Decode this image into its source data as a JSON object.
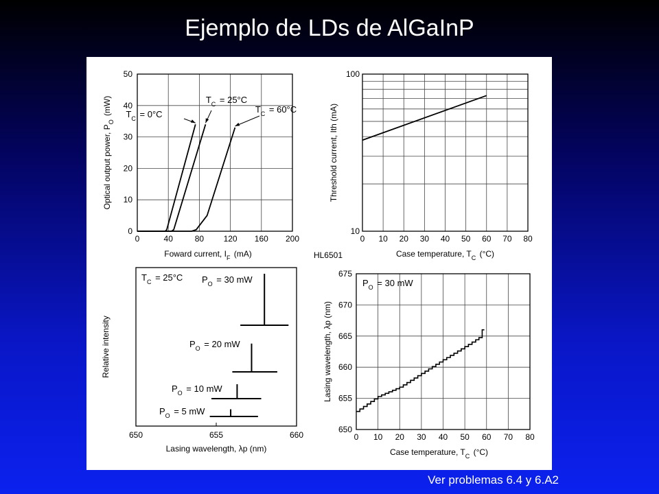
{
  "slide": {
    "title": "Ejemplo de LDs de AlGaInP",
    "footnote": "Ver problemas 6.4 y 6.A2"
  },
  "device_label": "HL6501",
  "colors": {
    "panel_bg": "#ffffff",
    "ink": "#000000",
    "title": "#ffffff"
  },
  "chart_data": [
    {
      "type": "line",
      "panel": "top-left",
      "xlabel": "Foward current,  I",
      "xlabel_sub": "F",
      "xlabel_unit": "(mA)",
      "ylabel": "Optical output power,  P",
      "ylabel_sub": "O",
      "ylabel_unit": "(mW)",
      "xlim": [
        0,
        200
      ],
      "ylim": [
        0,
        50
      ],
      "xticks": [
        0,
        40,
        80,
        120,
        160,
        200
      ],
      "yticks": [
        0,
        10,
        20,
        30,
        40,
        50
      ],
      "grid": true,
      "series": [
        {
          "name": "T C = 0°C",
          "points": [
            [
              0,
              0
            ],
            [
              36,
              0
            ],
            [
              38,
              0.5
            ],
            [
              75,
              34
            ]
          ]
        },
        {
          "name": "T C = 25°C",
          "points": [
            [
              0,
              0
            ],
            [
              44,
              0
            ],
            [
              47,
              0.5
            ],
            [
              88,
              34
            ]
          ]
        },
        {
          "name": "T C = 60°C",
          "points": [
            [
              0,
              0
            ],
            [
              70,
              0
            ],
            [
              76,
              0.5
            ],
            [
              90,
              5
            ],
            [
              126,
              33
            ]
          ]
        }
      ],
      "annotations": [
        {
          "text": "T",
          "sub": "C",
          "rest": " = 0°C",
          "points_to": [
            75,
            34
          ]
        },
        {
          "text": "T",
          "sub": "C",
          "rest": " = 25°C",
          "points_to": [
            88,
            34
          ]
        },
        {
          "text": "T",
          "sub": "C",
          "rest": " = 60°C",
          "points_to": [
            126,
            33
          ]
        }
      ]
    },
    {
      "type": "line",
      "panel": "top-right",
      "xlabel": "Case temperature,  T",
      "xlabel_sub": "C",
      "xlabel_unit": "(°C)",
      "ylabel": "Threshold current,  Ith  (mA)",
      "xlim": [
        0,
        80
      ],
      "ylim": [
        10,
        100
      ],
      "yscale": "log",
      "xticks": [
        0,
        10,
        20,
        30,
        40,
        50,
        60,
        70,
        80
      ],
      "yticks": [
        10,
        100
      ],
      "grid": true,
      "series": [
        {
          "name": "Ith",
          "points": [
            [
              0,
              38
            ],
            [
              60,
              73
            ]
          ]
        }
      ]
    },
    {
      "type": "bar",
      "panel": "bottom-left",
      "xlabel": "Lasing wavelength,  λp  (nm)",
      "ylabel": "Relative intensity",
      "xlim": [
        650,
        660
      ],
      "xticks": [
        650,
        655,
        660
      ],
      "grid": false,
      "header": {
        "text": "T",
        "sub": "C",
        "rest": " = 25°C"
      },
      "spectra": [
        {
          "label": "P",
          "sub": "O",
          "rest": " = 30 mW",
          "peak_nm": 658.0,
          "base_from": 656.5,
          "base_to": 659.5,
          "relative_height": 1.0
        },
        {
          "label": "P",
          "sub": "O",
          "rest": " = 20 mW",
          "peak_nm": 657.2,
          "base_from": 656.0,
          "base_to": 658.8,
          "relative_height": 0.55
        },
        {
          "label": "P",
          "sub": "O",
          "rest": " = 10 mW",
          "peak_nm": 656.3,
          "base_from": 654.7,
          "base_to": 657.8,
          "relative_height": 0.28
        },
        {
          "label": "P",
          "sub": "O",
          "rest": " = 5 mW",
          "peak_nm": 655.9,
          "base_from": 654.6,
          "base_to": 657.6,
          "relative_height": 0.14
        }
      ]
    },
    {
      "type": "line",
      "panel": "bottom-right",
      "xlabel": "Case temperature,  T",
      "xlabel_sub": "C",
      "xlabel_unit": "(°C)",
      "ylabel": "Lasing wavelength,  λp  (nm)",
      "xlim": [
        0,
        80
      ],
      "ylim": [
        650,
        675
      ],
      "xticks": [
        0,
        10,
        20,
        30,
        40,
        50,
        60,
        70,
        80
      ],
      "yticks": [
        650,
        655,
        660,
        665,
        670,
        675
      ],
      "grid": true,
      "legend_text": {
        "text": "P",
        "sub": "O",
        "rest": " = 30 mW"
      },
      "series": [
        {
          "name": "λp",
          "points": [
            [
              0,
              652.9
            ],
            [
              10,
              655.3
            ],
            [
              20,
              656.8
            ],
            [
              30,
              659.0
            ],
            [
              40,
              661.2
            ],
            [
              50,
              663.3
            ],
            [
              55,
              664.4
            ],
            [
              58,
              665.1
            ],
            [
              58,
              666.0
            ],
            [
              59,
              666.0
            ]
          ]
        }
      ]
    }
  ]
}
